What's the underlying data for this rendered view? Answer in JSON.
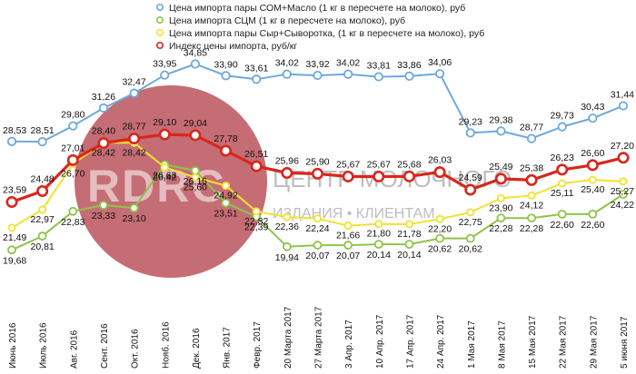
{
  "chart_data": {
    "type": "line",
    "title": "",
    "xlabel": "",
    "ylabel": "",
    "categories": [
      "Июнь 2016",
      "Июль 2016",
      "Авг. 2016",
      "Сент. 2016",
      "Окт. 2016",
      "Нояб. 2016",
      "Дек. 2016",
      "Янв. 2017",
      "Февр. 2017",
      "20 Марта 2017",
      "27 Марта 2017",
      "3 Апр. 2017",
      "10 Апр. 2017",
      "17 Апр. 2017",
      "24 Апр. 2017",
      "1 Мая 2017",
      "8 Мая 2017",
      "15 Мая 2017",
      "22 Мая 2017",
      "29 Мая 2017",
      "5 июня 2017"
    ],
    "series": [
      {
        "name": "Цена импорта пары СОМ+Масло (1 кг в пересчете на молоко), руб",
        "color": "#6fa8dc",
        "values": [
          28.53,
          28.51,
          29.8,
          31.26,
          32.47,
          33.95,
          34.85,
          33.9,
          33.61,
          34.02,
          33.92,
          34.02,
          33.81,
          33.86,
          34.06,
          29.23,
          29.38,
          28.77,
          29.73,
          30.43,
          31.44
        ]
      },
      {
        "name": "Цена импорта СЦМ (1 кг в пересчете на молоко), руб",
        "color": "#8fc44a",
        "values": [
          19.68,
          20.81,
          22.83,
          23.33,
          23.1,
          26.63,
          26.15,
          23.51,
          22.39,
          19.94,
          20.07,
          20.07,
          20.14,
          20.14,
          20.62,
          20.62,
          22.28,
          22.28,
          22.6,
          22.6,
          24.22
        ]
      },
      {
        "name": "Цена импорта пары Сыр+Сыворотка, (1 кг в пересчете на молоко), руб",
        "color": "#f2e232",
        "values": [
          21.49,
          22.97,
          26.7,
          28.42,
          28.42,
          26.42,
          25.6,
          24.92,
          22.82,
          22.36,
          22.24,
          21.66,
          21.8,
          21.78,
          22.2,
          22.75,
          23.9,
          24.12,
          25.11,
          25.4,
          25.27
        ]
      },
      {
        "name": "Индекс цены импорта, руб/кг",
        "color": "#d9261c",
        "values": [
          23.59,
          24.48,
          27.01,
          28.4,
          28.77,
          29.1,
          29.04,
          27.78,
          26.51,
          25.96,
          25.9,
          25.67,
          25.67,
          25.68,
          26.03,
          24.59,
          25.49,
          25.38,
          26.23,
          26.6,
          27.2
        ]
      }
    ],
    "labels": [
      [
        "28,53",
        "28,51",
        "29,80",
        "31,26",
        "32,47",
        "33,95",
        "34,85",
        "33,90",
        "33,61",
        "34,02",
        "33,92",
        "34,02",
        "33,81",
        "33,86",
        "34,06",
        "29,23",
        "29,38",
        "28,77",
        "29,73",
        "30,43",
        "31,44"
      ],
      [
        "19,68",
        "20,81",
        "22,83",
        "23,33",
        "23,10",
        "26,63",
        "26,15",
        "23,51",
        "22,39",
        "19,94",
        "20,07",
        "20,07",
        "20,14",
        "20,14",
        "20,62",
        "20,62",
        "22,28",
        "22,28",
        "22,60",
        "22,60",
        "24,22"
      ],
      [
        "21,49",
        "22,97",
        "26,70",
        "28,42",
        "28,42",
        "26,42",
        "25,60",
        "24,92",
        "22,82",
        "22,36",
        "22,24",
        "21,66",
        "21,80",
        "21,78",
        "22,20",
        "22,75",
        "23,90",
        "24,12",
        "25,11",
        "25,40",
        "25,27"
      ],
      [
        "23,59",
        "24,48",
        "27,01",
        "28,40",
        "28,77",
        "29,10",
        "29,04",
        "27,78",
        "26,51",
        "25,96",
        "25,90",
        "25,67",
        "25,67",
        "25,68",
        "26,03",
        "24,59",
        "25,49",
        "25,38",
        "26,23",
        "26,60",
        "27,20"
      ]
    ],
    "ylim": [
      18,
      36
    ],
    "grid": false,
    "legend_position": "top"
  },
  "watermark": {
    "logo_text": "RDRC",
    "brand_line1": "ЦЕНТР МОЛОЧНОГО",
    "brand_line2": "ИЗДАНИЯ • КЛИЕНТАМ",
    "circle_color": "#b5444d"
  }
}
